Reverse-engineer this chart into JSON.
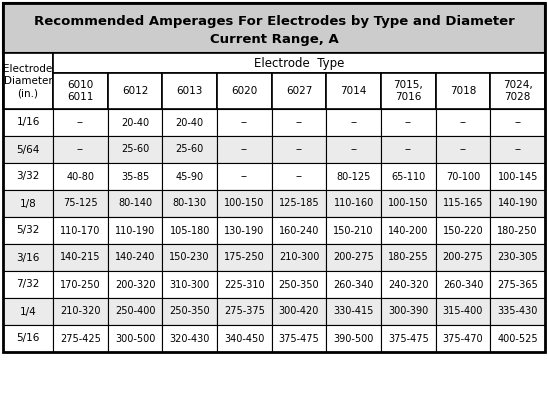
{
  "title_line1": "Recommended Amperages For Electrodes by Type and Diameter",
  "title_line2": "Current Range, A",
  "col_headers": [
    "6010\n6011",
    "6012",
    "6013",
    "6020",
    "6027",
    "7014",
    "7015,\n7016",
    "7018",
    "7024,\n7028"
  ],
  "row_headers": [
    "1/16",
    "5/64",
    "3/32",
    "1/8",
    "5/32",
    "3/16",
    "7/32",
    "1/4",
    "5/16"
  ],
  "table_data": [
    [
      "--",
      "20-40",
      "20-40",
      "--",
      "--",
      "--",
      "--",
      "--",
      "--"
    ],
    [
      "--",
      "25-60",
      "25-60",
      "--",
      "--",
      "--",
      "--",
      "--",
      "--"
    ],
    [
      "40-80",
      "35-85",
      "45-90",
      "--",
      "--",
      "80-125",
      "65-110",
      "70-100",
      "100-145"
    ],
    [
      "75-125",
      "80-140",
      "80-130",
      "100-150",
      "125-185",
      "110-160",
      "100-150",
      "115-165",
      "140-190"
    ],
    [
      "110-170",
      "110-190",
      "105-180",
      "130-190",
      "160-240",
      "150-210",
      "140-200",
      "150-220",
      "180-250"
    ],
    [
      "140-215",
      "140-240",
      "150-230",
      "175-250",
      "210-300",
      "200-275",
      "180-255",
      "200-275",
      "230-305"
    ],
    [
      "170-250",
      "200-320",
      "310-300",
      "225-310",
      "250-350",
      "260-340",
      "240-320",
      "260-340",
      "275-365"
    ],
    [
      "210-320",
      "250-400",
      "250-350",
      "275-375",
      "300-420",
      "330-415",
      "300-390",
      "315-400",
      "335-430"
    ],
    [
      "275-425",
      "300-500",
      "320-430",
      "340-450",
      "375-475",
      "390-500",
      "375-475",
      "375-470",
      "400-525"
    ]
  ],
  "title_bg": "#cccccc",
  "border_color": "#000000",
  "text_color": "#000000",
  "title_fontsize": 9.5,
  "header_fontsize": 7.5,
  "cell_fontsize": 7.0,
  "electrode_type_label": "Electrode  Type",
  "electrode_diam_label": "Electrode\nDiameter\n(in.)"
}
